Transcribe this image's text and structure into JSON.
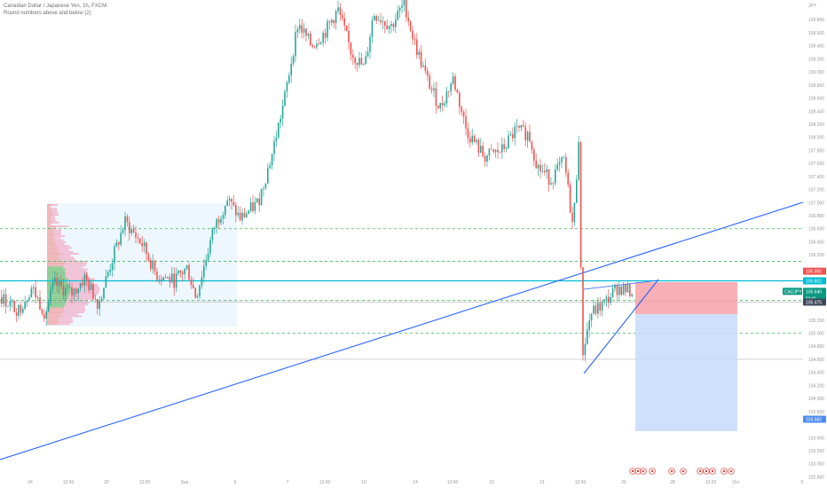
{
  "header": {
    "title": "Canadian Dollar / Japanese Yen, 1h, FXCM",
    "subtitle": "Round numbers above and below (2)"
  },
  "colors": {
    "up": "#26a69a",
    "down": "#ef5350",
    "trendline": "#2962ff",
    "dashed": "#3fb950",
    "hline": "#00bcd4",
    "gray_hline": "#b2b5be",
    "profile_box": "#e3f2fd",
    "stop_zone": "#f7a1a8",
    "target_zone": "#c6dafc",
    "axis_text": "#9598a1"
  },
  "price_axis": {
    "currency": "JPY",
    "ticks": [
      "110.000",
      "109.800",
      "109.600",
      "109.400",
      "109.200",
      "109.000",
      "108.800",
      "108.600",
      "108.400",
      "108.200",
      "108.000",
      "107.800",
      "107.600",
      "107.400",
      "107.200",
      "107.000",
      "106.800",
      "106.600",
      "106.400",
      "106.200",
      "105.950",
      "105.802",
      "105.640",
      "105.475",
      "105.200",
      "105.000",
      "104.800",
      "104.600",
      "104.400",
      "104.200",
      "104.000",
      "103.800",
      "103.682",
      "103.400",
      "103.200",
      "103.000",
      "102.800"
    ],
    "tags": {
      "stop": "105.950",
      "entry": "105.802",
      "symbol": "CADJPY",
      "last": "105.640",
      "countdown": "53:45",
      "support": "105.475",
      "target": "103.682"
    }
  },
  "time_axis": {
    "labels": [
      "24",
      "12:00",
      "29",
      "12:00",
      "Sep",
      "5",
      "7",
      "12:00",
      "10",
      "14",
      "12:00",
      "15",
      "21",
      "12:00",
      "26",
      "28",
      "12:00",
      "Oct",
      "5"
    ]
  },
  "chart_data": {
    "type": "candlestick",
    "title": "Canadian Dollar / Japanese Yen, 1h, FXCM",
    "ylim": [
      102.8,
      110.1
    ],
    "grid": false,
    "price_path": [
      {
        "x": 0,
        "y": 105.55
      },
      {
        "x": 20,
        "y": 105.35
      },
      {
        "x": 35,
        "y": 105.7
      },
      {
        "x": 50,
        "y": 105.3
      },
      {
        "x": 60,
        "y": 105.75
      },
      {
        "x": 80,
        "y": 105.6
      },
      {
        "x": 95,
        "y": 105.85
      },
      {
        "x": 110,
        "y": 105.45
      },
      {
        "x": 125,
        "y": 106.1
      },
      {
        "x": 140,
        "y": 106.7
      },
      {
        "x": 160,
        "y": 106.35
      },
      {
        "x": 175,
        "y": 105.9
      },
      {
        "x": 195,
        "y": 105.8
      },
      {
        "x": 210,
        "y": 106.0
      },
      {
        "x": 220,
        "y": 105.55
      },
      {
        "x": 240,
        "y": 106.6
      },
      {
        "x": 255,
        "y": 107.05
      },
      {
        "x": 270,
        "y": 106.75
      },
      {
        "x": 290,
        "y": 107.0
      },
      {
        "x": 305,
        "y": 107.7
      },
      {
        "x": 320,
        "y": 108.6
      },
      {
        "x": 335,
        "y": 109.75
      },
      {
        "x": 350,
        "y": 109.4
      },
      {
        "x": 365,
        "y": 109.6
      },
      {
        "x": 380,
        "y": 109.95
      },
      {
        "x": 395,
        "y": 109.3
      },
      {
        "x": 410,
        "y": 109.05
      },
      {
        "x": 420,
        "y": 109.9
      },
      {
        "x": 440,
        "y": 109.7
      },
      {
        "x": 455,
        "y": 110.05
      },
      {
        "x": 465,
        "y": 109.5
      },
      {
        "x": 480,
        "y": 108.9
      },
      {
        "x": 495,
        "y": 108.45
      },
      {
        "x": 510,
        "y": 108.9
      },
      {
        "x": 525,
        "y": 108.1
      },
      {
        "x": 545,
        "y": 107.7
      },
      {
        "x": 565,
        "y": 107.8
      },
      {
        "x": 580,
        "y": 108.1
      },
      {
        "x": 595,
        "y": 108.05
      },
      {
        "x": 605,
        "y": 107.55
      },
      {
        "x": 620,
        "y": 107.35
      },
      {
        "x": 635,
        "y": 107.65
      },
      {
        "x": 645,
        "y": 106.6
      },
      {
        "x": 652,
        "y": 108.05
      },
      {
        "x": 655,
        "y": 104.65
      },
      {
        "x": 665,
        "y": 105.3
      },
      {
        "x": 680,
        "y": 105.45
      },
      {
        "x": 695,
        "y": 105.7
      },
      {
        "x": 710,
        "y": 105.64
      }
    ],
    "annotations": {
      "dashed_levels": [
        106.6,
        106.1,
        105.5,
        105.0
      ],
      "gray_level": 104.6,
      "entry": 105.802,
      "stop": 105.95,
      "target": 103.682,
      "support": 105.475
    }
  }
}
